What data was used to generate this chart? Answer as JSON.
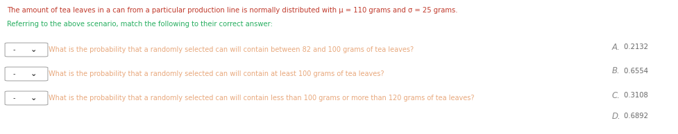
{
  "title_line1_parts": [
    {
      "text": "The amount of tea leaves in a can from a particular production line is normally distributed with ",
      "bold": false
    },
    {
      "text": "μ",
      "bold": true
    },
    {
      "text": " = 110 grams and ",
      "bold": false
    },
    {
      "text": "σ",
      "bold": true
    },
    {
      "text": " = 25 grams.",
      "bold": false
    }
  ],
  "title_line1_full": "The amount of tea leaves in a can from a particular production line is normally distributed with μ = 110 grams and σ = 25 grams.",
  "title_line2": "Referring to the above scenario, match the following to their correct answer:",
  "questions": [
    "What is the probability that a randomly selected can will contain between 82 and 100 grams of tea leaves?",
    "What is the probability that a randomly selected can will contain at least 100 grams of tea leaves?",
    "What is the probability that a randomly selected can will contain less than 100 grams or more than 120 grams of tea leaves?"
  ],
  "answers": [
    {
      "letter": "A.",
      "value": " 0.2132"
    },
    {
      "letter": "B.",
      "value": " 0.6554"
    },
    {
      "letter": "C.",
      "value": " 0.3108"
    },
    {
      "letter": "D.",
      "value": " 0.6892"
    }
  ],
  "title_color": "#c0392b",
  "subtitle_color": "#27ae60",
  "question_color": "#e8a87c",
  "answer_letter_color": "#888888",
  "answer_value_color": "#666666",
  "bg_color": "#ffffff",
  "box_edge_color": "#aaaaaa",
  "dropdown_dash_color": "#333333",
  "dropdown_arrow_color": "#333333"
}
